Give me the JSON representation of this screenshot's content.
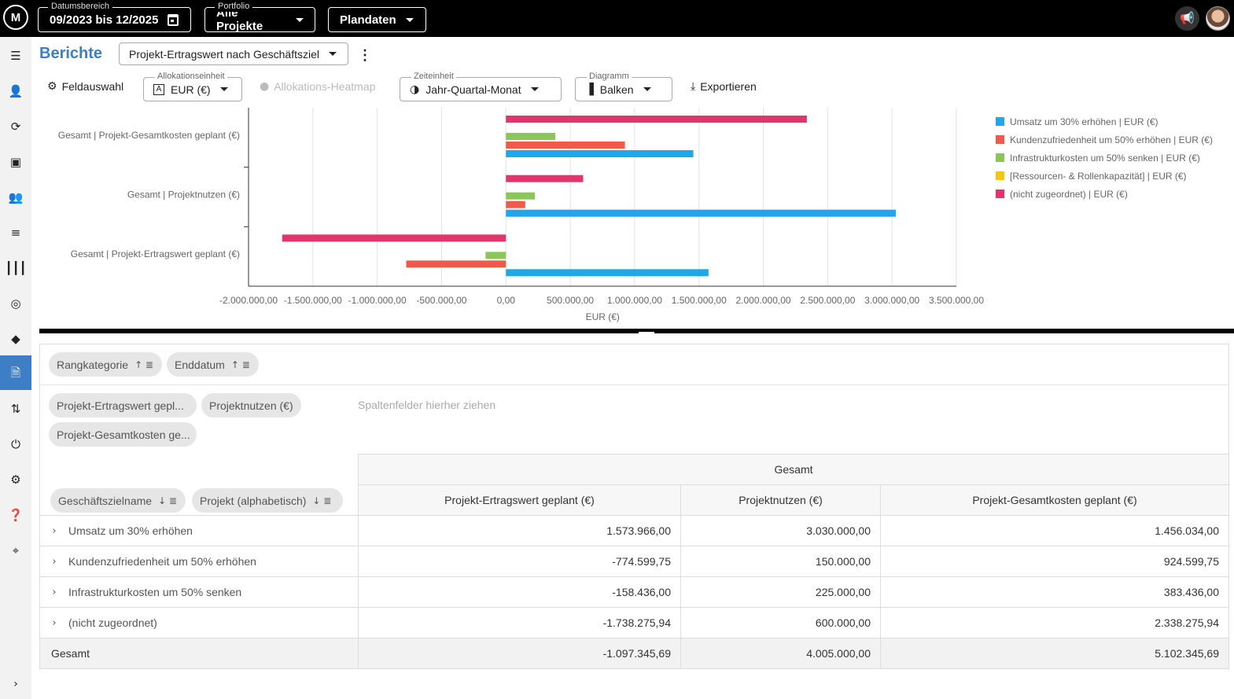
{
  "topbar": {
    "logo_text": "M",
    "date_range_legend": "Datumsbereich",
    "date_range_value": "09/2023 bis 12/2025",
    "portfolio_legend": "Portfolio",
    "portfolio_value": "Alle Projekte",
    "plandata_value": "Plandaten"
  },
  "header": {
    "title": "Berichte",
    "report_select": "Projekt-Ertragswert nach Geschäftsziel"
  },
  "toolbar": {
    "field_selection": "Feldauswahl",
    "allocation_unit_legend": "Allokationseinheit",
    "allocation_unit_value": "EUR (€)",
    "heatmap": "Allokations-Heatmap",
    "time_unit_legend": "Zeiteinheit",
    "time_unit_value": "Jahr-Quartal-Monat",
    "diagram_legend": "Diagramm",
    "diagram_value": "Balken",
    "export": "Exportieren"
  },
  "chart_data": {
    "type": "bar",
    "orientation": "horizontal",
    "categories": [
      "Gesamt | Projekt-Gesamtkosten geplant (€)",
      "Gesamt | Projektnutzen (€)",
      "Gesamt | Projekt-Ertragswert geplant (€)"
    ],
    "series": [
      {
        "name": "Umsatz um 30% erhöhen | EUR (€)",
        "color": "#1ea7ea",
        "values": [
          1456034.0,
          3030000.0,
          1573966.0
        ]
      },
      {
        "name": "Kundenzufriedenheit um 50% erhöhen | EUR (€)",
        "color": "#ef5a4a",
        "values": [
          924599.75,
          150000.0,
          -774599.75
        ]
      },
      {
        "name": "Infrastrukturkosten um 50% senken | EUR (€)",
        "color": "#8cc65b",
        "values": [
          383436.0,
          225000.0,
          -158436.0
        ]
      },
      {
        "name": "[Ressourcen- & Rollenkapazität] | EUR (€)",
        "color": "#f6c31b",
        "values": [
          0,
          0,
          0
        ]
      },
      {
        "name": "(nicht zugeordnet) | EUR (€)",
        "color": "#e5336e",
        "values": [
          2338275.94,
          600000.0,
          -1738275.94
        ]
      }
    ],
    "x_ticks": [
      "-2.000.000,00",
      "-1.500.000,00",
      "-1.000.000,00",
      "-500.000,00",
      "0,00",
      "500.000,00",
      "1.000.000,00",
      "1.500.000,00",
      "2.000.000,00",
      "2.500.000,00",
      "3.000.000,00",
      "3.500.000,00"
    ],
    "xlabel": "EUR (€)",
    "xlim": [
      -2000000,
      3500000
    ],
    "grid": true,
    "legend_position": "right"
  },
  "pivot": {
    "row_filters": [
      {
        "label": "Rangkategorie"
      },
      {
        "label": "Enddatum"
      }
    ],
    "value_fields": [
      {
        "label": "Projekt-Ertragswert gepl..."
      },
      {
        "label": "Projektnutzen (€)"
      },
      {
        "label": "Projekt-Gesamtkosten ge..."
      }
    ],
    "column_drop_hint": "Spaltenfelder hierher ziehen",
    "row_fields": [
      {
        "label": "Geschäftszielname"
      },
      {
        "label": "Projekt (alphabetisch)"
      }
    ],
    "column_group": "Gesamt",
    "columns": [
      "Projekt-Ertragswert geplant (€)",
      "Projektnutzen (€)",
      "Projekt-Gesamtkosten geplant (€)"
    ],
    "rows": [
      {
        "label": "Umsatz um 30% erhöhen",
        "values": [
          "1.573.966,00",
          "3.030.000,00",
          "1.456.034,00"
        ]
      },
      {
        "label": "Kundenzufriedenheit um 50% erhöhen",
        "values": [
          "-774.599,75",
          "150.000,00",
          "924.599,75"
        ]
      },
      {
        "label": "Infrastrukturkosten um 50% senken",
        "values": [
          "-158.436,00",
          "225.000,00",
          "383.436,00"
        ]
      },
      {
        "label": "(nicht zugeordnet)",
        "values": [
          "-1.738.275,94",
          "600.000,00",
          "2.338.275,94"
        ]
      }
    ],
    "total": {
      "label": "Gesamt",
      "values": [
        "-1.097.345,69",
        "4.005.000,00",
        "5.102.345,69"
      ]
    }
  }
}
